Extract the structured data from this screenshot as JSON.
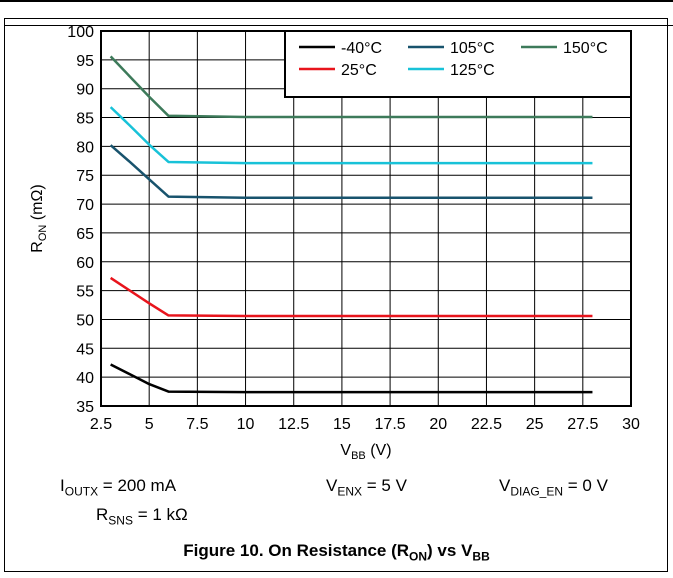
{
  "chart_data": {
    "type": "line",
    "title": "",
    "xlabel_main": "V",
    "xlabel_sub": "BB",
    "xlabel_unit": "(V)",
    "ylabel_main": "R",
    "ylabel_sub": "ON",
    "ylabel_unit": "(mΩ)",
    "xlim": [
      2.5,
      30
    ],
    "ylim": [
      35,
      100
    ],
    "x_ticks": [
      "2.5",
      "5",
      "7.5",
      "10",
      "12.5",
      "15",
      "17.5",
      "20",
      "22.5",
      "25",
      "27.5",
      "30"
    ],
    "y_ticks": [
      "35",
      "40",
      "45",
      "50",
      "55",
      "60",
      "65",
      "70",
      "75",
      "80",
      "85",
      "90",
      "95",
      "100"
    ],
    "grid": true,
    "legend_position": "top-right",
    "series": [
      {
        "name": "-40°C",
        "color": "#000000",
        "x": [
          3,
          4,
          5,
          6,
          10,
          28
        ],
        "y": [
          42.2,
          40.5,
          38.8,
          37.5,
          37.4,
          37.4
        ]
      },
      {
        "name": "25°C",
        "color": "#e8141c",
        "x": [
          3,
          4,
          5,
          6,
          10,
          28
        ],
        "y": [
          57.2,
          55.0,
          52.8,
          50.7,
          50.6,
          50.6
        ]
      },
      {
        "name": "105°C",
        "color": "#18536d",
        "x": [
          3,
          4,
          5,
          6,
          10,
          28
        ],
        "y": [
          80.2,
          77.3,
          74.3,
          71.3,
          71.1,
          71.1
        ]
      },
      {
        "name": "125°C",
        "color": "#18c2d8",
        "x": [
          3,
          4,
          5,
          6,
          10,
          28
        ],
        "y": [
          86.8,
          83.6,
          80.3,
          77.3,
          77.1,
          77.1
        ]
      },
      {
        "name": "150°C",
        "color": "#3d7a5a",
        "x": [
          3,
          4,
          5,
          6,
          10,
          28
        ],
        "y": [
          95.6,
          92.1,
          88.6,
          85.3,
          85.1,
          85.1
        ]
      }
    ]
  },
  "conditions": {
    "ioutx": {
      "main": "I",
      "sub": "OUTX",
      "rest": " = 200 mA"
    },
    "venx": {
      "main": "V",
      "sub": "ENX",
      "rest": " = 5 V"
    },
    "vdiag": {
      "main": "V",
      "sub": "DIAG_EN",
      "rest": " = 0 V"
    },
    "rsns": {
      "main": "R",
      "sub": "SNS",
      "rest": " = 1 kΩ"
    }
  },
  "caption": {
    "prefix": "Figure 10. On Resistance (R",
    "sub1": "ON",
    "middle": ") vs V",
    "sub2": "BB"
  }
}
